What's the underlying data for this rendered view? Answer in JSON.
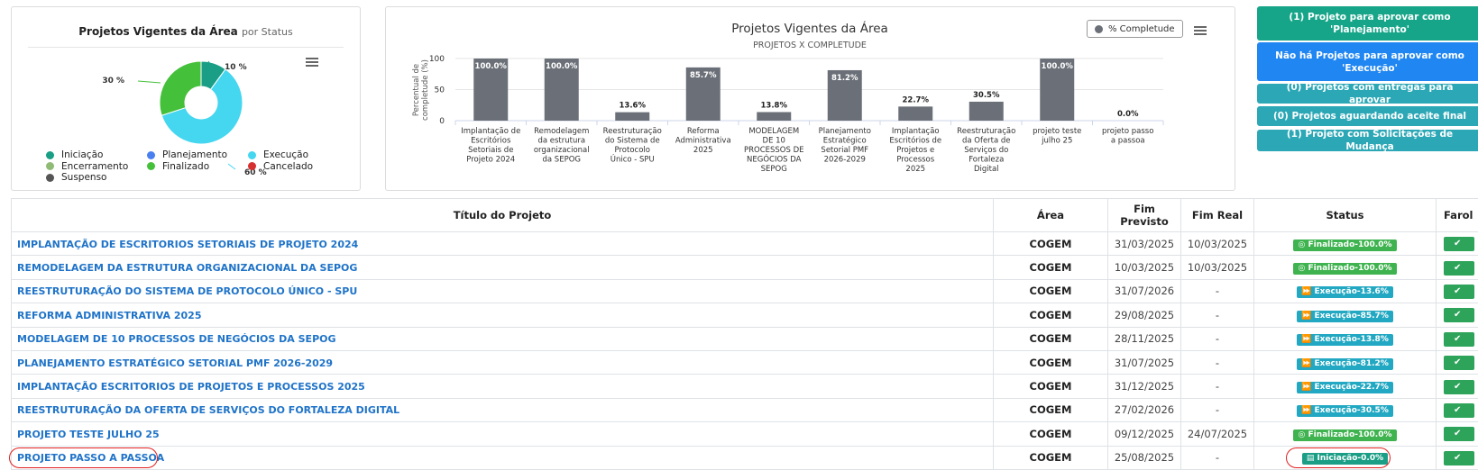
{
  "donut_chart": {
    "title": "Projetos Vigentes da Área",
    "subtitle": "por Status",
    "slices": [
      {
        "label": "Iniciação",
        "value": 10,
        "label_text": "10 %",
        "color": "#1a9e86"
      },
      {
        "label": "Execução",
        "value": 60,
        "label_text": "60 %",
        "color": "#45d6f0"
      },
      {
        "label": "Finalizado",
        "value": 30,
        "label_text": "30 %",
        "color": "#45c03b"
      }
    ],
    "legend": [
      {
        "label": "Iniciação",
        "color": "#1a9e86"
      },
      {
        "label": "Planejamento",
        "color": "#4a7ff0"
      },
      {
        "label": "Execução",
        "color": "#45d6f0"
      },
      {
        "label": "Encerramento",
        "color": "#8fbb75"
      },
      {
        "label": "Finalizado",
        "color": "#45c03b"
      },
      {
        "label": "Cancelado",
        "color": "#d63030"
      },
      {
        "label": "Suspenso",
        "color": "#555555"
      }
    ]
  },
  "chart_data": {
    "type": "bar",
    "title": "Projetos Vigentes da Área",
    "subtitle": "PROJETOS X COMPLETUDE",
    "ylabel": "Percentual de completude (%)",
    "ylim": [
      0,
      100
    ],
    "yticks": [
      0,
      50,
      100
    ],
    "legend": "% Completude",
    "legend_position": "top-right",
    "bar_color": "#6b7078",
    "categories": [
      [
        "Implantação de",
        "Escritórios",
        "Setoriais de",
        "Projeto 2024"
      ],
      [
        "Remodelagem",
        "da estrutura",
        "organizacional",
        "da SEPOG"
      ],
      [
        "Reestruturação",
        "do Sistema de",
        "Protocolo",
        "Único - SPU"
      ],
      [
        "Reforma",
        "Administrativa",
        "2025"
      ],
      [
        "MODELAGEM",
        "DE 10",
        "PROCESSOS DE",
        "NEGÓCIOS DA",
        "SEPOG"
      ],
      [
        "Planejamento",
        "Estratégico",
        "Setorial PMF",
        "2026-2029"
      ],
      [
        "Implantação",
        "Escritórios de",
        "Projetos e",
        "Processos",
        "2025"
      ],
      [
        "Reestruturação",
        "da Oferta de",
        "Serviços do",
        "Fortaleza",
        "Digital"
      ],
      [
        "projeto teste",
        "julho 25"
      ],
      [
        "projeto passo",
        "a passoa"
      ]
    ],
    "values": [
      100.0,
      100.0,
      13.6,
      85.7,
      13.8,
      81.2,
      22.7,
      30.5,
      100.0,
      0.0
    ],
    "value_labels": [
      "100.0%",
      "100.0%",
      "13.6%",
      "85.7%",
      "13.8%",
      "81.2%",
      "22.7%",
      "30.5%",
      "100.0%",
      "0.0%"
    ]
  },
  "side_buttons": [
    {
      "lines": [
        "(1) Projeto para aprovar como",
        "'Planejamento'"
      ],
      "color": "#17a589"
    },
    {
      "lines": [
        "Não há Projetos para aprovar como",
        "'Execução'"
      ],
      "color": "#1f86f2"
    },
    {
      "lines": [
        "(0) Projetos com entregas para aprovar"
      ],
      "color": "#2ba7b6"
    },
    {
      "lines": [
        "(0) Projetos aguardando aceite final"
      ],
      "color": "#2ba7b6"
    },
    {
      "lines": [
        "(1) Projeto com Solicitações de Mudança"
      ],
      "color": "#2ba7b6"
    }
  ],
  "table": {
    "headers": [
      "Título do Projeto",
      "Área",
      "Fim Previsto",
      "Fim Real",
      "Status",
      "Farol"
    ],
    "rows": [
      {
        "title": "IMPLANTAÇÃO DE ESCRITORIOS SETORIAIS DE PROJETO 2024",
        "area": "COGEM",
        "fim_previsto": "31/03/2025",
        "fim_real": "10/03/2025",
        "status": "Finalizado-100.0%",
        "status_icon": "check-circle",
        "status_color": "#3fb34f"
      },
      {
        "title": "REMODELAGEM DA ESTRUTURA ORGANIZACIONAL DA SEPOG",
        "area": "COGEM",
        "fim_previsto": "10/03/2025",
        "fim_real": "10/03/2025",
        "status": "Finalizado-100.0%",
        "status_icon": "check-circle",
        "status_color": "#3fb34f"
      },
      {
        "title": "REESTRUTURAÇÃO DO SISTEMA DE PROTOCOLO ÚNICO - SPU",
        "area": "COGEM",
        "fim_previsto": "31/07/2026",
        "fim_real": "-",
        "status": "Execução-13.6%",
        "status_icon": "fast-forward",
        "status_color": "#22a8c2"
      },
      {
        "title": "REFORMA ADMINISTRATIVA 2025",
        "area": "COGEM",
        "fim_previsto": "29/08/2025",
        "fim_real": "-",
        "status": "Execução-85.7%",
        "status_icon": "fast-forward",
        "status_color": "#22a8c2"
      },
      {
        "title": "MODELAGEM DE 10 PROCESSOS DE NEGÓCIOS DA SEPOG",
        "area": "COGEM",
        "fim_previsto": "28/11/2025",
        "fim_real": "-",
        "status": "Execução-13.8%",
        "status_icon": "fast-forward",
        "status_color": "#22a8c2"
      },
      {
        "title": "PLANEJAMENTO ESTRATÉGICO SETORIAL PMF 2026-2029",
        "area": "COGEM",
        "fim_previsto": "31/07/2025",
        "fim_real": "-",
        "status": "Execução-81.2%",
        "status_icon": "fast-forward",
        "status_color": "#22a8c2"
      },
      {
        "title": "IMPLANTAÇÃO ESCRITORIOS DE PROJETOS E PROCESSOS 2025",
        "area": "COGEM",
        "fim_previsto": "31/12/2025",
        "fim_real": "-",
        "status": "Execução-22.7%",
        "status_icon": "fast-forward",
        "status_color": "#22a8c2"
      },
      {
        "title": "REESTRUTURAÇÃO DA OFERTA DE SERVIÇOS DO FORTALEZA DIGITAL",
        "area": "COGEM",
        "fim_previsto": "27/02/2026",
        "fim_real": "-",
        "status": "Execução-30.5%",
        "status_icon": "fast-forward",
        "status_color": "#22a8c2"
      },
      {
        "title": "PROJETO TESTE JULHO 25",
        "area": "COGEM",
        "fim_previsto": "09/12/2025",
        "fim_real": "24/07/2025",
        "status": "Finalizado-100.0%",
        "status_icon": "check-circle",
        "status_color": "#3fb34f"
      },
      {
        "title": "PROJETO PASSO A PASSOA",
        "area": "COGEM",
        "fim_previsto": "25/08/2025",
        "fim_real": "-",
        "status": "Iniciação-0.0%",
        "status_icon": "document",
        "status_color": "#1a9e86"
      }
    ],
    "farol_icon": "check-circle",
    "farol_color": "#2ea35a"
  },
  "colors": {
    "highlight": "#e02020",
    "link": "#1f73c8"
  }
}
